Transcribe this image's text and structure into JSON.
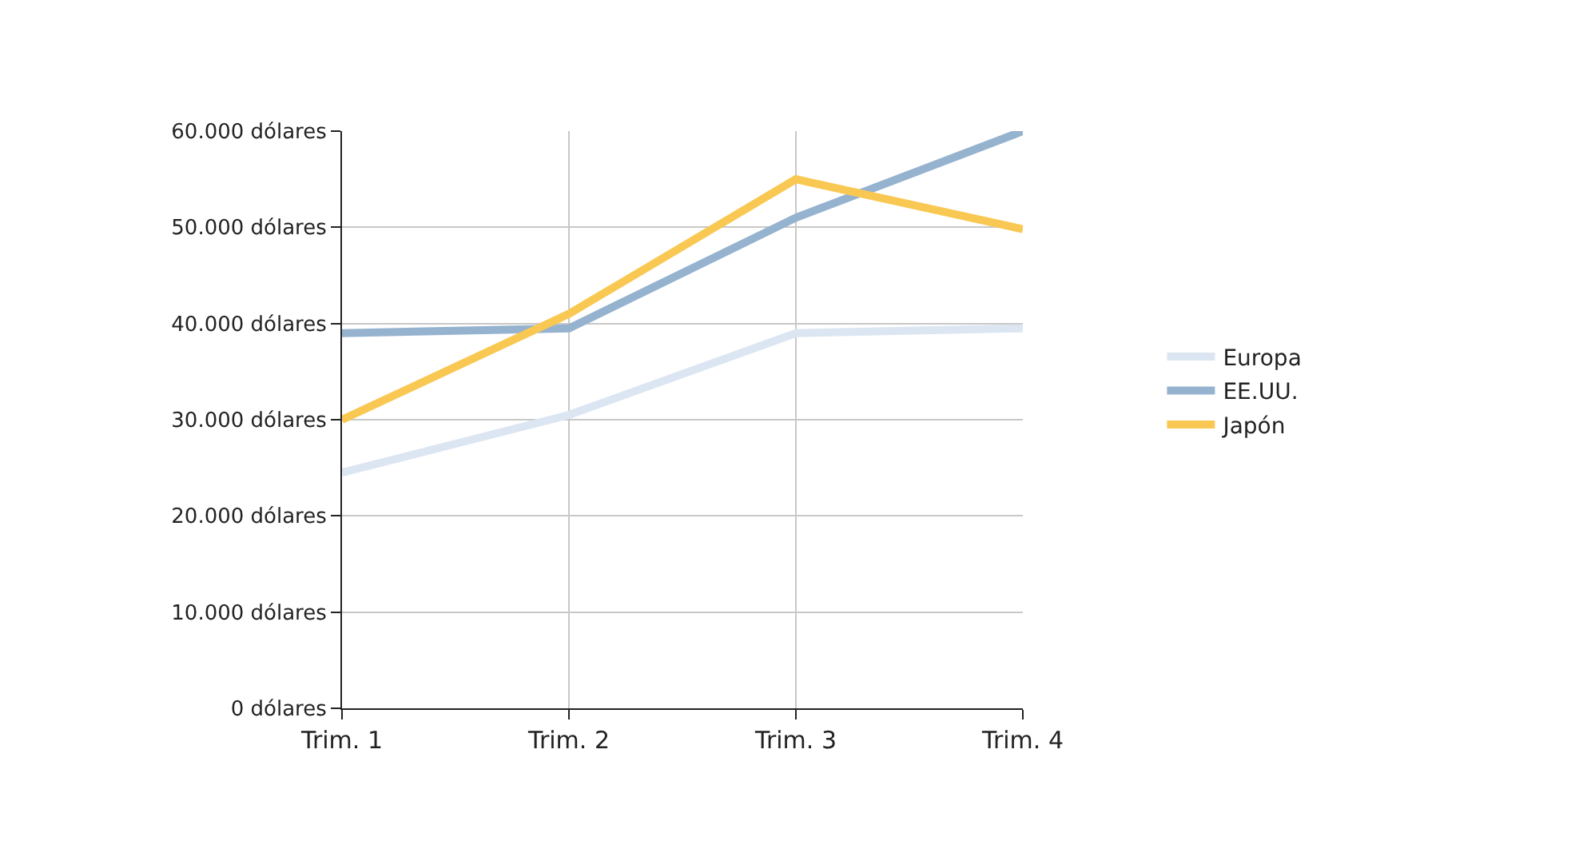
{
  "chart_data": {
    "type": "line",
    "categories": [
      "Trim. 1",
      "Trim. 2",
      "Trim. 3",
      "Trim. 4"
    ],
    "series": [
      {
        "name": "Europa",
        "color": "#dce6f2",
        "values": [
          24500,
          30500,
          39000,
          39500
        ]
      },
      {
        "name": "EE.UU.",
        "color": "#95b3cf",
        "values": [
          39000,
          39500,
          51000,
          60000
        ]
      },
      {
        "name": "Japón",
        "color": "#f9c852",
        "values": [
          30000,
          41000,
          55000,
          49800
        ]
      }
    ],
    "ylim": [
      0,
      60000
    ],
    "yticks": [
      {
        "value": 0,
        "label": "0 dólares"
      },
      {
        "value": 10000,
        "label": "10.000 dólares"
      },
      {
        "value": 20000,
        "label": "20.000 dólares"
      },
      {
        "value": 30000,
        "label": "30.000 dólares"
      },
      {
        "value": 40000,
        "label": "40.000 dólares"
      },
      {
        "value": 50000,
        "label": "50.000 dólares"
      },
      {
        "value": 60000,
        "label": "60.000 dólares"
      }
    ],
    "grid": true,
    "legend": "right",
    "marker": "none",
    "line_style": "solid"
  }
}
